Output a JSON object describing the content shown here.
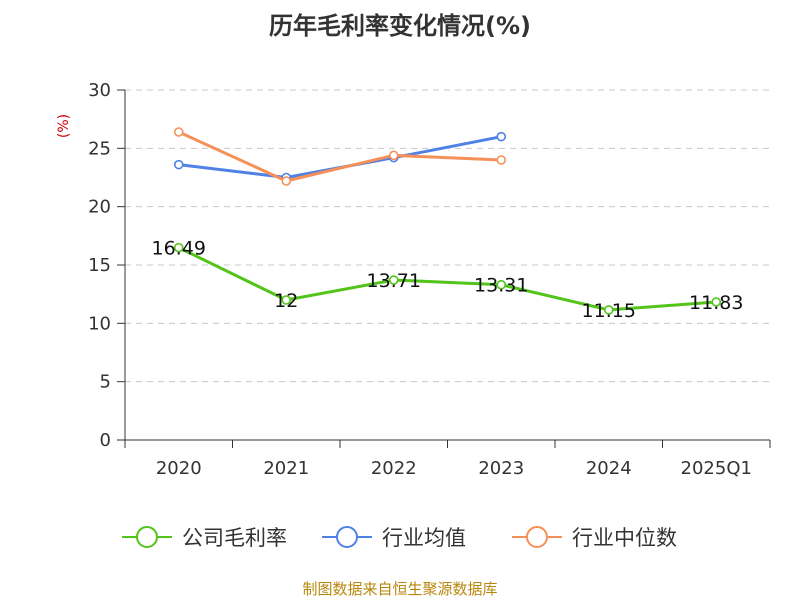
{
  "chart_data": {
    "type": "line",
    "title": "历年毛利率变化情况(%)",
    "ylabel": "(%)",
    "xlabel": "",
    "categories": [
      "2020",
      "2021",
      "2022",
      "2023",
      "2024",
      "2025Q1"
    ],
    "ylim": [
      0,
      30
    ],
    "yticks": [
      "0",
      "5",
      "10",
      "15",
      "20",
      "25",
      "30"
    ],
    "grid": true,
    "legend_position": "bottom",
    "series": [
      {
        "name": "公司毛利率",
        "color": "#52c41a",
        "values": [
          16.49,
          12,
          13.71,
          13.31,
          11.15,
          11.83
        ],
        "labels": [
          "16.49",
          "12",
          "13.71",
          "13.31",
          "11.15",
          "11.83"
        ]
      },
      {
        "name": "行业均值",
        "color": "#4f81e6",
        "values": [
          23.6,
          22.5,
          24.2,
          26.0,
          null,
          null
        ]
      },
      {
        "name": "行业中位数",
        "color": "#f59058",
        "values": [
          26.4,
          22.2,
          24.4,
          24.0,
          null,
          null
        ]
      }
    ]
  },
  "source": "制图数据来自恒生聚源数据库"
}
